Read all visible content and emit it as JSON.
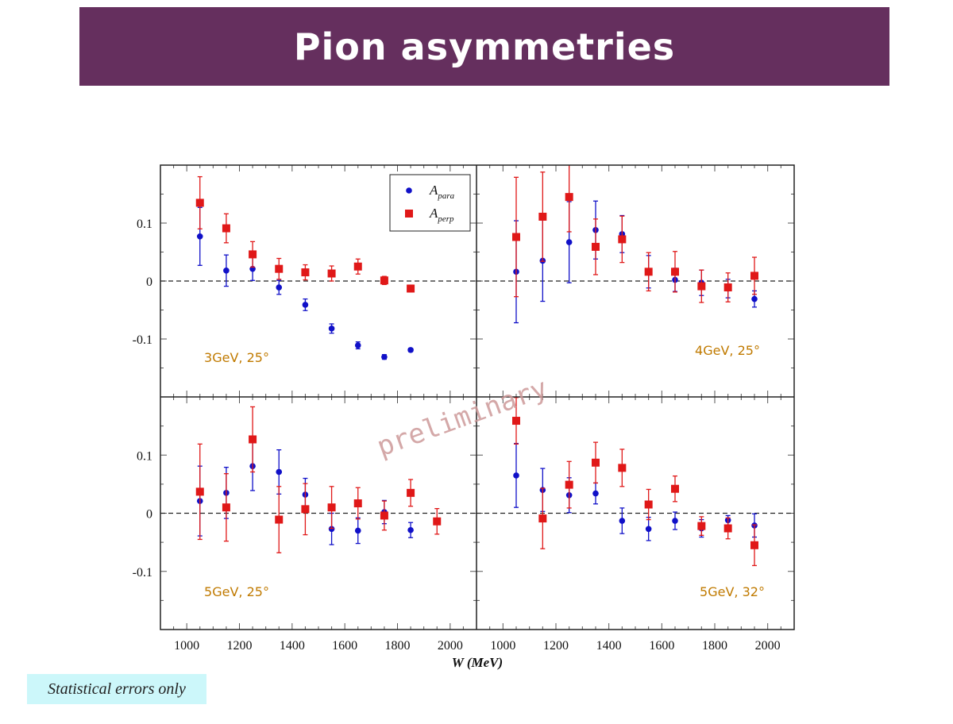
{
  "header": {
    "title": "Pion asymmetries"
  },
  "footnote": "Statistical errors only",
  "watermark": "preliminary",
  "colors": {
    "title_bg": "#652f5e",
    "para": "#1010c8",
    "perp": "#e01818",
    "panel_label": "#c07a00",
    "note_bg": "#ccf7fa"
  },
  "chart_data": {
    "type": "scatter",
    "xlabel": "W (MeV)",
    "xlim": [
      900,
      2100
    ],
    "ylim": [
      -0.2,
      0.2
    ],
    "xticks": [
      1000,
      1200,
      1400,
      1600,
      1800,
      2000
    ],
    "yticks": [
      0.1,
      0,
      -0.1
    ],
    "ytick_labels": [
      "0.1",
      "0",
      "-0.1"
    ],
    "legend": {
      "placement": "top-right of first panel",
      "entries": [
        {
          "main": "A",
          "sub": "para",
          "series": "para"
        },
        {
          "main": "A",
          "sub": "perp",
          "series": "perp"
        }
      ]
    },
    "panels": [
      {
        "label": "3GeV, 25°",
        "para": [
          {
            "x": 1050,
            "y": 0.077,
            "err": 0.05
          },
          {
            "x": 1150,
            "y": 0.018,
            "err": 0.027
          },
          {
            "x": 1250,
            "y": 0.021,
            "err": 0.02
          },
          {
            "x": 1350,
            "y": -0.011,
            "err": 0.012
          },
          {
            "x": 1450,
            "y": -0.041,
            "err": 0.01
          },
          {
            "x": 1550,
            "y": -0.082,
            "err": 0.008
          },
          {
            "x": 1650,
            "y": -0.111,
            "err": 0.006
          },
          {
            "x": 1750,
            "y": -0.131,
            "err": 0.004
          },
          {
            "x": 1850,
            "y": -0.119,
            "err": 0.003
          }
        ],
        "perp": [
          {
            "x": 1050,
            "y": 0.135,
            "err": 0.045
          },
          {
            "x": 1150,
            "y": 0.091,
            "err": 0.025
          },
          {
            "x": 1250,
            "y": 0.046,
            "err": 0.022
          },
          {
            "x": 1350,
            "y": 0.021,
            "err": 0.018
          },
          {
            "x": 1450,
            "y": 0.015,
            "err": 0.013
          },
          {
            "x": 1550,
            "y": 0.013,
            "err": 0.013
          },
          {
            "x": 1650,
            "y": 0.025,
            "err": 0.013
          },
          {
            "x": 1750,
            "y": 0.001,
            "err": 0.007
          },
          {
            "x": 1850,
            "y": -0.013,
            "err": 0.006
          }
        ]
      },
      {
        "label": "4GeV, 25°",
        "para": [
          {
            "x": 1050,
            "y": 0.016,
            "err": 0.088
          },
          {
            "x": 1150,
            "y": 0.035,
            "err": 0.07
          },
          {
            "x": 1250,
            "y": 0.067,
            "err": 0.07
          },
          {
            "x": 1350,
            "y": 0.088,
            "err": 0.05
          },
          {
            "x": 1450,
            "y": 0.081,
            "err": 0.032
          },
          {
            "x": 1550,
            "y": 0.016,
            "err": 0.028
          },
          {
            "x": 1650,
            "y": 0.002,
            "err": 0.02
          },
          {
            "x": 1750,
            "y": -0.003,
            "err": 0.022
          },
          {
            "x": 1850,
            "y": -0.013,
            "err": 0.016
          },
          {
            "x": 1950,
            "y": -0.031,
            "err": 0.014
          }
        ],
        "perp": [
          {
            "x": 1050,
            "y": 0.076,
            "err": 0.103
          },
          {
            "x": 1150,
            "y": 0.111,
            "err": 0.077
          },
          {
            "x": 1250,
            "y": 0.145,
            "err": 0.06
          },
          {
            "x": 1350,
            "y": 0.059,
            "err": 0.048
          },
          {
            "x": 1450,
            "y": 0.072,
            "err": 0.04
          },
          {
            "x": 1550,
            "y": 0.016,
            "err": 0.033
          },
          {
            "x": 1650,
            "y": 0.016,
            "err": 0.035
          },
          {
            "x": 1750,
            "y": -0.009,
            "err": 0.028
          },
          {
            "x": 1850,
            "y": -0.011,
            "err": 0.025
          },
          {
            "x": 1950,
            "y": 0.009,
            "err": 0.032
          }
        ]
      },
      {
        "label": "5GeV, 25°",
        "para": [
          {
            "x": 1050,
            "y": 0.021,
            "err": 0.06
          },
          {
            "x": 1150,
            "y": 0.035,
            "err": 0.044
          },
          {
            "x": 1250,
            "y": 0.081,
            "err": 0.042
          },
          {
            "x": 1350,
            "y": 0.071,
            "err": 0.038
          },
          {
            "x": 1450,
            "y": 0.032,
            "err": 0.028
          },
          {
            "x": 1550,
            "y": -0.027,
            "err": 0.027
          },
          {
            "x": 1650,
            "y": -0.03,
            "err": 0.022
          },
          {
            "x": 1750,
            "y": 0.002,
            "err": 0.02
          },
          {
            "x": 1850,
            "y": -0.029,
            "err": 0.013
          }
        ],
        "perp": [
          {
            "x": 1050,
            "y": 0.037,
            "err": 0.082
          },
          {
            "x": 1150,
            "y": 0.01,
            "err": 0.058
          },
          {
            "x": 1250,
            "y": 0.127,
            "err": 0.056
          },
          {
            "x": 1350,
            "y": -0.011,
            "err": 0.057
          },
          {
            "x": 1450,
            "y": 0.007,
            "err": 0.044
          },
          {
            "x": 1550,
            "y": 0.01,
            "err": 0.036
          },
          {
            "x": 1650,
            "y": 0.017,
            "err": 0.027
          },
          {
            "x": 1750,
            "y": -0.004,
            "err": 0.025
          },
          {
            "x": 1850,
            "y": 0.035,
            "err": 0.023
          },
          {
            "x": 1950,
            "y": -0.014,
            "err": 0.022
          }
        ]
      },
      {
        "label": "5GeV, 32°",
        "para": [
          {
            "x": 1050,
            "y": 0.065,
            "err": 0.055
          },
          {
            "x": 1150,
            "y": 0.04,
            "err": 0.037
          },
          {
            "x": 1250,
            "y": 0.031,
            "err": 0.03
          },
          {
            "x": 1350,
            "y": 0.034,
            "err": 0.018
          },
          {
            "x": 1450,
            "y": -0.013,
            "err": 0.022
          },
          {
            "x": 1550,
            "y": -0.027,
            "err": 0.02
          },
          {
            "x": 1650,
            "y": -0.013,
            "err": 0.015
          },
          {
            "x": 1750,
            "y": -0.026,
            "err": 0.015
          },
          {
            "x": 1850,
            "y": -0.012,
            "err": 0.008
          },
          {
            "x": 1950,
            "y": -0.021,
            "err": 0.02
          }
        ],
        "perp": [
          {
            "x": 1050,
            "y": 0.159,
            "err": 0.04
          },
          {
            "x": 1150,
            "y": -0.009,
            "err": 0.052
          },
          {
            "x": 1250,
            "y": 0.049,
            "err": 0.04
          },
          {
            "x": 1350,
            "y": 0.087,
            "err": 0.035
          },
          {
            "x": 1450,
            "y": 0.078,
            "err": 0.032
          },
          {
            "x": 1550,
            "y": 0.015,
            "err": 0.026
          },
          {
            "x": 1650,
            "y": 0.042,
            "err": 0.022
          },
          {
            "x": 1750,
            "y": -0.022,
            "err": 0.016
          },
          {
            "x": 1850,
            "y": -0.026,
            "err": 0.018
          },
          {
            "x": 1950,
            "y": -0.055,
            "err": 0.035
          }
        ]
      }
    ]
  }
}
